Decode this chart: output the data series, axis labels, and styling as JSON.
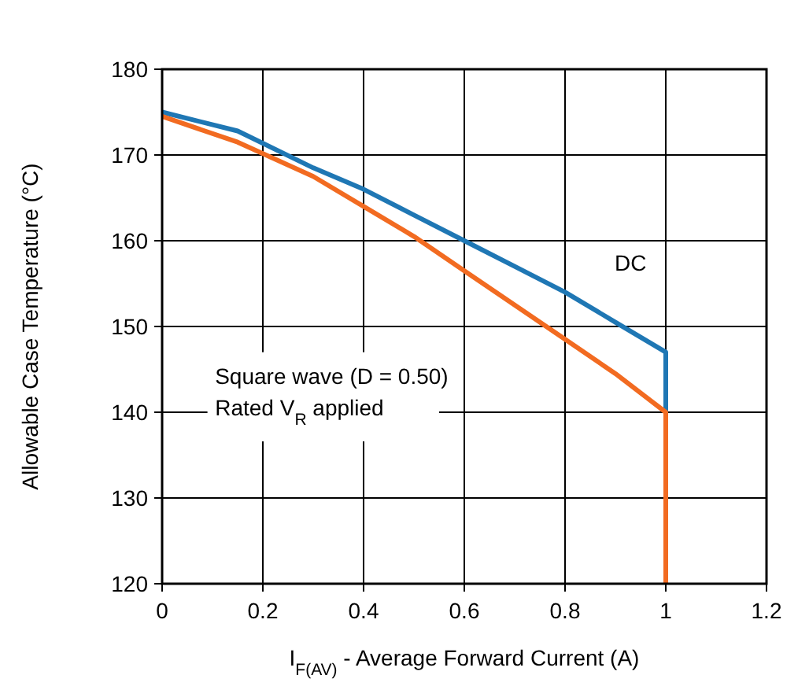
{
  "chart_data": {
    "type": "line",
    "xlabel": "I$_{F(AV)}$ - Average Forward Current (A)",
    "ylabel": "Allowable Case Temperature (°C)",
    "series": [
      {
        "color": "#1f77b4",
        "x": [
          0,
          0.15,
          0.3,
          0.4,
          0.5,
          0.6,
          0.7,
          0.8,
          0.9,
          1.0,
          1.0
        ],
        "values": [
          175,
          172.8,
          168.5,
          166,
          163,
          160,
          157,
          154,
          150.5,
          147,
          140
        ]
      },
      {
        "color": "#f26b21",
        "x": [
          0,
          0.15,
          0.3,
          0.4,
          0.5,
          0.6,
          0.7,
          0.8,
          0.9,
          1.0,
          1.0
        ],
        "values": [
          174.5,
          171.5,
          167.5,
          164,
          160.5,
          156.5,
          152.5,
          148.5,
          144.5,
          140,
          120
        ]
      }
    ],
    "annotations": [
      "DC",
      "Square wave (D = 0.50)",
      "Rated V$_{R}$ applied"
    ],
    "xlim": [
      0,
      1.2
    ],
    "xticks": [
      0,
      0.2,
      0.4,
      0.6,
      0.8,
      1,
      1.2
    ],
    "ylim": [
      120,
      180
    ],
    "yticks": [
      120,
      130,
      140,
      150,
      160,
      170,
      180
    ],
    "grid": true,
    "marker": "none",
    "line_style": "solid"
  }
}
